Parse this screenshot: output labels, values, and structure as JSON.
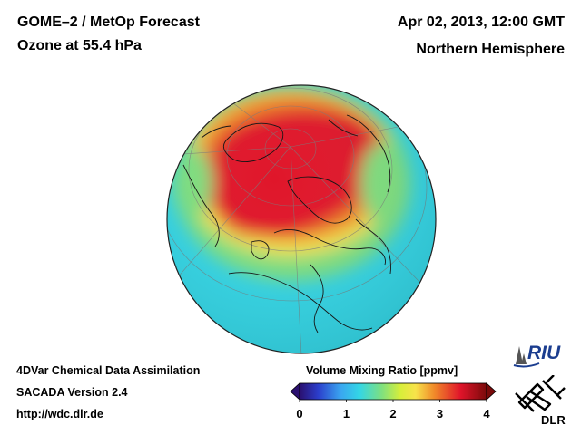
{
  "header": {
    "title": "GOME–2 / MetOp Forecast",
    "subtitle": "Ozone at 55.4 hPa",
    "datetime": "Apr 02, 2013, 12:00 GMT",
    "region": "Northern Hemisphere"
  },
  "footer": {
    "line1": "4DVar Chemical Data Assimilation",
    "line2": "SACADA Version 2.4",
    "line3": "http://wdc.dlr.de"
  },
  "colorbar": {
    "title": "Volume Mixing Ratio [ppmv]",
    "ticks": [
      "0",
      "1",
      "2",
      "3",
      "4"
    ],
    "min": 0,
    "max": 4
  },
  "logos": {
    "riu": "RIU",
    "dlr": "DLR"
  },
  "colors": {
    "ocean_cyan": "#33d6e6",
    "high_red": "#e0142a",
    "mid_orange": "#f08a2a",
    "yellow": "#f7e34a",
    "green": "#7fe07f"
  }
}
